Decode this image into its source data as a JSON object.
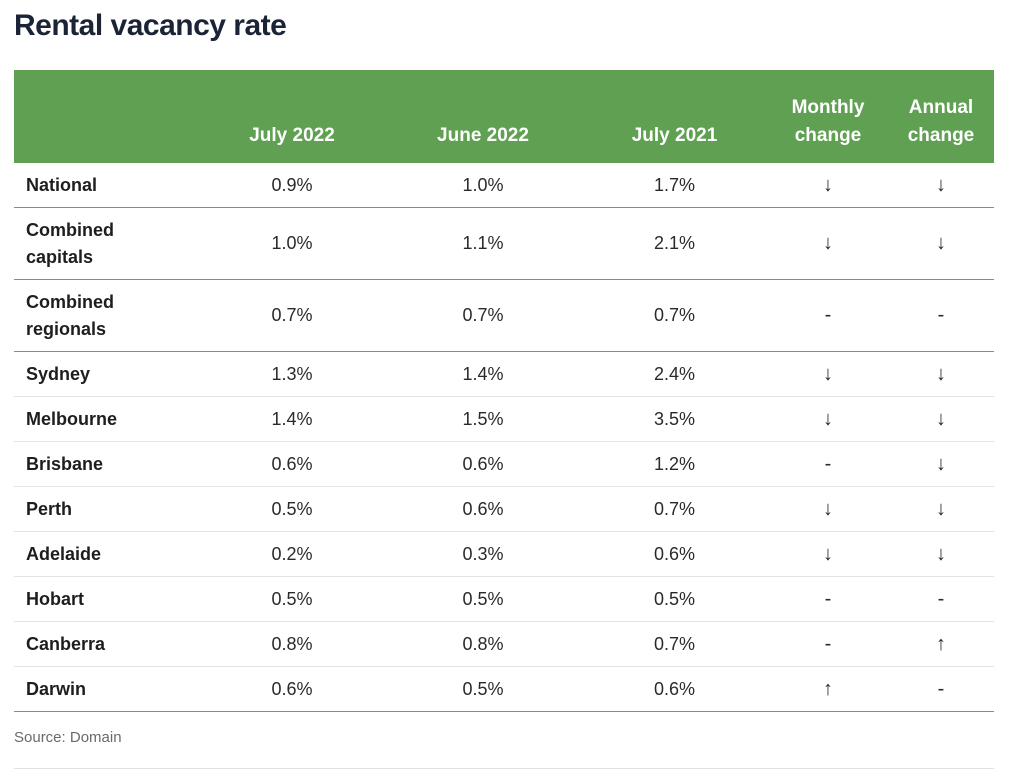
{
  "chart_data": {
    "type": "table",
    "title": "Rental vacancy rate",
    "columns": [
      "",
      "July 2022",
      "June 2022",
      "July 2021",
      "Monthly change",
      "Annual change"
    ],
    "rows": [
      {
        "name": "National",
        "cells": [
          "0.9%",
          "1.0%",
          "1.7%",
          "↓",
          "↓"
        ]
      },
      {
        "name": "Combined capitals",
        "cells": [
          "1.0%",
          "1.1%",
          "2.1%",
          "↓",
          "↓"
        ]
      },
      {
        "name": "Combined regionals",
        "cells": [
          "0.7%",
          "0.7%",
          "0.7%",
          "-",
          "-"
        ]
      },
      {
        "name": "Sydney",
        "cells": [
          "1.3%",
          "1.4%",
          "2.4%",
          "↓",
          "↓"
        ]
      },
      {
        "name": "Melbourne",
        "cells": [
          "1.4%",
          "1.5%",
          "3.5%",
          "↓",
          "↓"
        ]
      },
      {
        "name": "Brisbane",
        "cells": [
          "0.6%",
          "0.6%",
          "1.2%",
          "-",
          "↓"
        ]
      },
      {
        "name": "Perth",
        "cells": [
          "0.5%",
          "0.6%",
          "0.7%",
          "↓",
          "↓"
        ]
      },
      {
        "name": "Adelaide",
        "cells": [
          "0.2%",
          "0.3%",
          "0.6%",
          "↓",
          "↓"
        ]
      },
      {
        "name": "Hobart",
        "cells": [
          "0.5%",
          "0.5%",
          "0.5%",
          "-",
          "-"
        ]
      },
      {
        "name": "Canberra",
        "cells": [
          "0.8%",
          "0.8%",
          "0.7%",
          "-",
          "↑"
        ]
      },
      {
        "name": "Darwin",
        "cells": [
          "0.6%",
          "0.5%",
          "0.6%",
          "↑",
          "-"
        ]
      }
    ],
    "source": "Source: Domain"
  },
  "colors": {
    "header_bg": "#5fa052",
    "header_text": "#ffffff",
    "title_text": "#1b2436"
  }
}
